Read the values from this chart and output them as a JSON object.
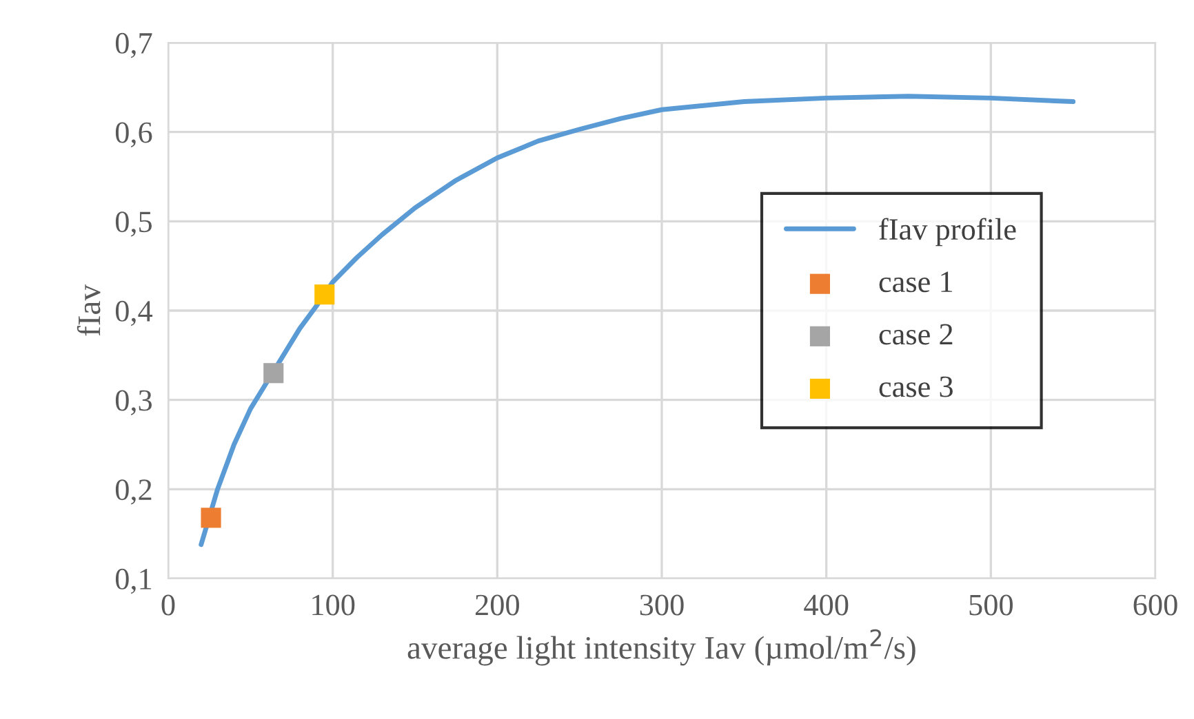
{
  "chart_data": {
    "type": "line",
    "xlabel": "average light intensity Iav (µmol/m$^{2}$/s)",
    "ylabel": "fIav",
    "xlim": [
      0,
      600
    ],
    "xticks": [
      0,
      100,
      200,
      300,
      400,
      500,
      600
    ],
    "ylim": [
      0.1,
      0.7
    ],
    "yticks": [
      {
        "value": 0.1,
        "label": "0,1"
      },
      {
        "value": 0.2,
        "label": "0,2"
      },
      {
        "value": 0.3,
        "label": "0,3"
      },
      {
        "value": 0.4,
        "label": "0,4"
      },
      {
        "value": 0.5,
        "label": "0,5"
      },
      {
        "value": 0.6,
        "label": "0,6"
      },
      {
        "value": 0.7,
        "label": "0,7"
      }
    ],
    "grid": true,
    "legend": "right",
    "line_style": "solid",
    "series": [
      {
        "name": "fIav profile",
        "color": "#5b9bd5",
        "marker": "none",
        "x": [
          20,
          30,
          40,
          50,
          60,
          70,
          80,
          90,
          100,
          115,
          130,
          150,
          175,
          200,
          225,
          250,
          275,
          300,
          350,
          400,
          450,
          500,
          550
        ],
        "values": [
          0.138,
          0.2,
          0.25,
          0.29,
          0.32,
          0.35,
          0.38,
          0.405,
          0.432,
          0.46,
          0.485,
          0.515,
          0.546,
          0.571,
          0.59,
          0.603,
          0.615,
          0.625,
          0.634,
          0.638,
          0.64,
          0.638,
          0.634
        ]
      },
      {
        "name": "case 1",
        "type": "scatter",
        "color": "#ed7d31",
        "marker": "square",
        "x": [
          26
        ],
        "values": [
          0.168
        ]
      },
      {
        "name": "case 2",
        "type": "scatter",
        "color": "#a5a5a5",
        "marker": "square",
        "x": [
          64
        ],
        "values": [
          0.33
        ]
      },
      {
        "name": "case 3",
        "type": "scatter",
        "color": "#ffc000",
        "marker": "square",
        "x": [
          95
        ],
        "values": [
          0.418
        ]
      }
    ]
  }
}
